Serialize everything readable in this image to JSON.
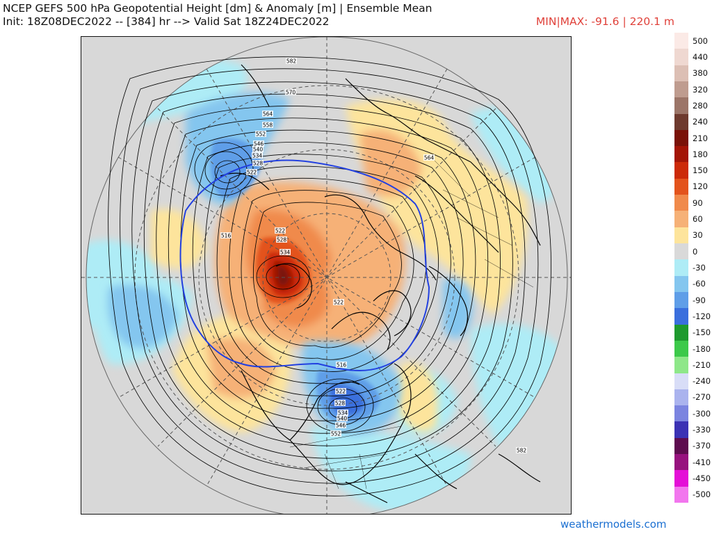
{
  "header": {
    "title_line1": "NCEP GEFS 500 hPa Geopotential Height [dm] & Anomaly [m] | Ensemble Mean",
    "title_line2": "Init: 18Z08DEC2022 -- [384] hr --> Valid Sat 18Z24DEC2022",
    "minmax": "MIN|MAX: -91.6 | 220.1 m"
  },
  "colorbar": {
    "unit": "m",
    "bins": [
      {
        "label": "500",
        "color": "#fbeae6"
      },
      {
        "label": "440",
        "color": "#efd8d1"
      },
      {
        "label": "380",
        "color": "#dcbfb4"
      },
      {
        "label": "320",
        "color": "#bf9c8f"
      },
      {
        "label": "280",
        "color": "#9c7568"
      },
      {
        "label": "240",
        "color": "#6e3a2e"
      },
      {
        "label": "210",
        "color": "#7a1208"
      },
      {
        "label": "180",
        "color": "#a31506"
      },
      {
        "label": "150",
        "color": "#cc2a08"
      },
      {
        "label": "120",
        "color": "#e3531c"
      },
      {
        "label": "90",
        "color": "#f08a4b"
      },
      {
        "label": "60",
        "color": "#f6b177"
      },
      {
        "label": "30",
        "color": "#fde49c"
      },
      {
        "label": "0",
        "color": "#d9d9d9"
      },
      {
        "label": "-30",
        "color": "#aeecf6"
      },
      {
        "label": "-60",
        "color": "#84c6ef"
      },
      {
        "label": "-90",
        "color": "#5f9ee8"
      },
      {
        "label": "-120",
        "color": "#3a6fdd"
      },
      {
        "label": "-150",
        "color": "#1e9a2e"
      },
      {
        "label": "-180",
        "color": "#3cc94a"
      },
      {
        "label": "-210",
        "color": "#8ee789"
      },
      {
        "label": "-240",
        "color": "#d8ddf7"
      },
      {
        "label": "-270",
        "color": "#aab3ee"
      },
      {
        "label": "-300",
        "color": "#7b84e0"
      },
      {
        "label": "-330",
        "color": "#3b32b4"
      },
      {
        "label": "-370",
        "color": "#5e0c4f"
      },
      {
        "label": "-410",
        "color": "#97127e"
      },
      {
        "label": "-450",
        "color": "#e40fd7"
      },
      {
        "label": "-500",
        "color": "#f276ee"
      }
    ]
  },
  "map": {
    "projection": "north polar stereographic",
    "fill_color": "#dcdcdc",
    "contour_labels": [
      "582",
      "570",
      "564",
      "558",
      "552",
      "546",
      "540",
      "534",
      "528",
      "522",
      "516",
      "522",
      "528",
      "534",
      "522",
      "516",
      "522",
      "528",
      "534",
      "540",
      "546",
      "552",
      "564",
      "582"
    ],
    "highlight_contour": "540"
  },
  "footer": {
    "website": "weathermodels.com"
  }
}
